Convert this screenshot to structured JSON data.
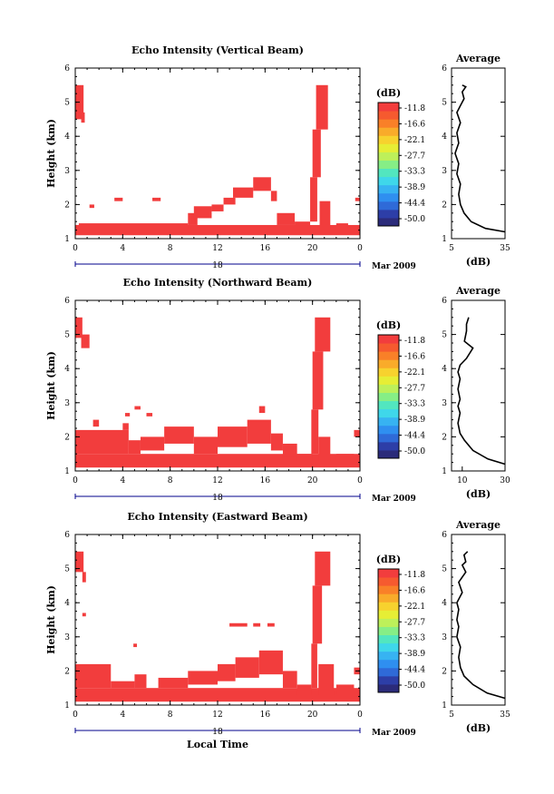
{
  "figure": {
    "xlabel_bottom": "Local Time",
    "date_center": "18",
    "date_right": "Mar 2009",
    "colorbar_unit": "(dB)",
    "colorbar_labels": [
      "-11.8",
      "-16.6",
      "-22.1",
      "-27.7",
      "-33.3",
      "-38.9",
      "-44.4",
      "-50.0"
    ],
    "colorbar_colors": [
      "#2b2b7a",
      "#2d3ea7",
      "#2f6ad8",
      "#2f8ff0",
      "#37b3f2",
      "#3fd7ea",
      "#52e6bf",
      "#86ee86",
      "#bdf05a",
      "#e6ee35",
      "#f7d22e",
      "#f9ab2a",
      "#f98028",
      "#f65a2f",
      "#f23d3d"
    ],
    "echo_color": "#f23d3d",
    "avg_title": "Average",
    "avg_xlabel": "(dB)"
  },
  "chart_data": [
    {
      "type": "heatmap",
      "title": "Echo Intensity (Vertical Beam)",
      "ylabel": "Height (km)",
      "xlim": [
        0,
        24
      ],
      "ylim": [
        1,
        6
      ],
      "xticks": [
        "0",
        "4",
        "8",
        "12",
        "16",
        "20",
        "0"
      ],
      "yticks": [
        "1",
        "2",
        "3",
        "4",
        "5",
        "6"
      ],
      "echo_blocks": [
        [
          0,
          1.1,
          24,
          1.4
        ],
        [
          0.3,
          1.3,
          9.5,
          1.45
        ],
        [
          9.5,
          1.4,
          10.3,
          1.75
        ],
        [
          10,
          1.6,
          11.5,
          1.95
        ],
        [
          11.5,
          1.8,
          12.5,
          2.0
        ],
        [
          12.5,
          2.0,
          13.5,
          2.2
        ],
        [
          13.3,
          2.2,
          15.0,
          2.5
        ],
        [
          15.0,
          2.4,
          16.5,
          2.8
        ],
        [
          16.5,
          2.1,
          17.0,
          2.4
        ],
        [
          17.0,
          1.4,
          18.5,
          1.75
        ],
        [
          18.5,
          1.3,
          19.8,
          1.5
        ],
        [
          19.8,
          1.5,
          20.4,
          2.8
        ],
        [
          20.0,
          2.8,
          20.7,
          4.2
        ],
        [
          20.3,
          4.2,
          21.3,
          5.5
        ],
        [
          20.6,
          1.3,
          21.5,
          2.1
        ],
        [
          0,
          4.5,
          0.7,
          5.5
        ],
        [
          0.5,
          4.4,
          0.8,
          4.7
        ],
        [
          1.2,
          1.9,
          1.6,
          2.0
        ],
        [
          3.3,
          2.1,
          4.0,
          2.2
        ],
        [
          6.5,
          2.1,
          7.2,
          2.2
        ],
        [
          23.6,
          2.1,
          24,
          2.2
        ],
        [
          22.0,
          1.3,
          23.0,
          1.45
        ]
      ],
      "avg": {
        "xlim": [
          5,
          35
        ],
        "xticks": [
          "5",
          "35"
        ],
        "ylim": [
          1,
          6
        ],
        "yticks": [
          "1",
          "2",
          "3",
          "4",
          "5",
          "6"
        ],
        "x": [
          35,
          24,
          16,
          12,
          10,
          9,
          10,
          8,
          9,
          7,
          9,
          8,
          10,
          8,
          10,
          12,
          11,
          13,
          11
        ],
        "y": [
          1.2,
          1.3,
          1.5,
          1.75,
          2.0,
          2.3,
          2.6,
          2.9,
          3.2,
          3.5,
          3.8,
          4.1,
          4.4,
          4.7,
          4.9,
          5.1,
          5.3,
          5.45,
          5.5
        ]
      }
    },
    {
      "type": "heatmap",
      "title": "Echo Intensity (Northward Beam)",
      "ylabel": "Height (km)",
      "xlim": [
        0,
        24
      ],
      "ylim": [
        1,
        6
      ],
      "xticks": [
        "0",
        "4",
        "8",
        "12",
        "16",
        "20",
        "0"
      ],
      "yticks": [
        "1",
        "2",
        "3",
        "4",
        "5",
        "6"
      ],
      "echo_blocks": [
        [
          0,
          1.1,
          24,
          1.5
        ],
        [
          0,
          1.5,
          4.5,
          2.2
        ],
        [
          4.5,
          1.5,
          5.5,
          1.9
        ],
        [
          5.5,
          1.6,
          7.5,
          2.0
        ],
        [
          7.5,
          1.8,
          10.0,
          2.3
        ],
        [
          10.0,
          1.5,
          12.0,
          2.0
        ],
        [
          12.0,
          1.7,
          14.5,
          2.3
        ],
        [
          14.5,
          1.8,
          16.5,
          2.5
        ],
        [
          16.5,
          1.6,
          17.5,
          2.1
        ],
        [
          17.5,
          1.4,
          18.7,
          1.8
        ],
        [
          18.7,
          1.3,
          20.0,
          1.5
        ],
        [
          19.9,
          1.5,
          20.5,
          2.8
        ],
        [
          20.0,
          2.8,
          20.9,
          4.5
        ],
        [
          20.2,
          4.5,
          21.5,
          5.5
        ],
        [
          20.5,
          1.3,
          21.5,
          2.0
        ],
        [
          0,
          4.9,
          0.6,
          5.5
        ],
        [
          0.5,
          4.6,
          1.2,
          5.0
        ],
        [
          1.5,
          2.3,
          2.0,
          2.5
        ],
        [
          4.0,
          2.2,
          4.5,
          2.4
        ],
        [
          4.2,
          2.6,
          4.6,
          2.7
        ],
        [
          5.0,
          2.8,
          5.5,
          2.9
        ],
        [
          6.0,
          2.6,
          6.5,
          2.7
        ],
        [
          15.5,
          2.7,
          16.0,
          2.9
        ],
        [
          23.5,
          2.0,
          24,
          2.2
        ],
        [
          22.0,
          1.3,
          23.5,
          1.5
        ]
      ],
      "avg": {
        "xlim": [
          5,
          30
        ],
        "xticks": [
          "10",
          "30"
        ],
        "ylim": [
          1,
          6
        ],
        "yticks": [
          "1",
          "2",
          "3",
          "4",
          "5",
          "6"
        ],
        "x": [
          30,
          22,
          15,
          11,
          9,
          8,
          9,
          8,
          9,
          8,
          9,
          8,
          9,
          12,
          15,
          11,
          12,
          12,
          13
        ],
        "y": [
          1.2,
          1.35,
          1.6,
          1.9,
          2.1,
          2.4,
          2.7,
          2.9,
          3.1,
          3.4,
          3.7,
          3.9,
          4.1,
          4.3,
          4.6,
          4.8,
          5.1,
          5.3,
          5.5
        ]
      }
    },
    {
      "type": "heatmap",
      "title": "Echo Intensity (Eastward Beam)",
      "ylabel": "Height (km)",
      "xlim": [
        0,
        24
      ],
      "ylim": [
        1,
        6
      ],
      "xticks": [
        "0",
        "4",
        "8",
        "12",
        "16",
        "20",
        "0"
      ],
      "yticks": [
        "1",
        "2",
        "3",
        "4",
        "5",
        "6"
      ],
      "echo_blocks": [
        [
          0,
          1.1,
          24,
          1.5
        ],
        [
          0,
          1.5,
          3.0,
          2.2
        ],
        [
          3.0,
          1.5,
          5.0,
          1.7
        ],
        [
          5.0,
          1.5,
          6.0,
          1.9
        ],
        [
          7.0,
          1.5,
          9.5,
          1.8
        ],
        [
          9.5,
          1.6,
          12.0,
          2.0
        ],
        [
          12.0,
          1.7,
          13.5,
          2.2
        ],
        [
          13.5,
          1.8,
          15.5,
          2.4
        ],
        [
          15.5,
          1.9,
          17.5,
          2.6
        ],
        [
          17.5,
          1.5,
          18.7,
          2.0
        ],
        [
          18.7,
          1.3,
          19.9,
          1.6
        ],
        [
          19.9,
          1.5,
          20.4,
          2.8
        ],
        [
          20.0,
          2.8,
          20.8,
          4.5
        ],
        [
          20.2,
          4.5,
          21.5,
          5.5
        ],
        [
          20.5,
          1.3,
          21.8,
          2.2
        ],
        [
          0,
          4.9,
          0.7,
          5.5
        ],
        [
          0.6,
          4.6,
          0.9,
          4.9
        ],
        [
          0.6,
          3.6,
          0.9,
          3.7
        ],
        [
          4.9,
          2.7,
          5.2,
          2.8
        ],
        [
          13.0,
          3.3,
          14.5,
          3.4
        ],
        [
          15.0,
          3.3,
          15.6,
          3.4
        ],
        [
          16.2,
          3.3,
          16.8,
          3.4
        ],
        [
          23.5,
          1.9,
          24,
          2.1
        ],
        [
          22.0,
          1.3,
          23.5,
          1.6
        ]
      ],
      "avg": {
        "xlim": [
          5,
          35
        ],
        "xticks": [
          "5",
          "35"
        ],
        "ylim": [
          1,
          6
        ],
        "yticks": [
          "1",
          "2",
          "3",
          "4",
          "5",
          "6"
        ],
        "x": [
          35,
          25,
          17,
          12,
          10,
          9,
          10,
          8,
          9,
          8,
          9,
          8,
          11,
          9,
          13,
          11,
          13,
          12,
          14
        ],
        "y": [
          1.2,
          1.35,
          1.6,
          1.85,
          2.1,
          2.4,
          2.7,
          3.0,
          3.3,
          3.5,
          3.8,
          4.0,
          4.3,
          4.6,
          4.9,
          5.1,
          5.2,
          5.4,
          5.5
        ]
      }
    }
  ]
}
